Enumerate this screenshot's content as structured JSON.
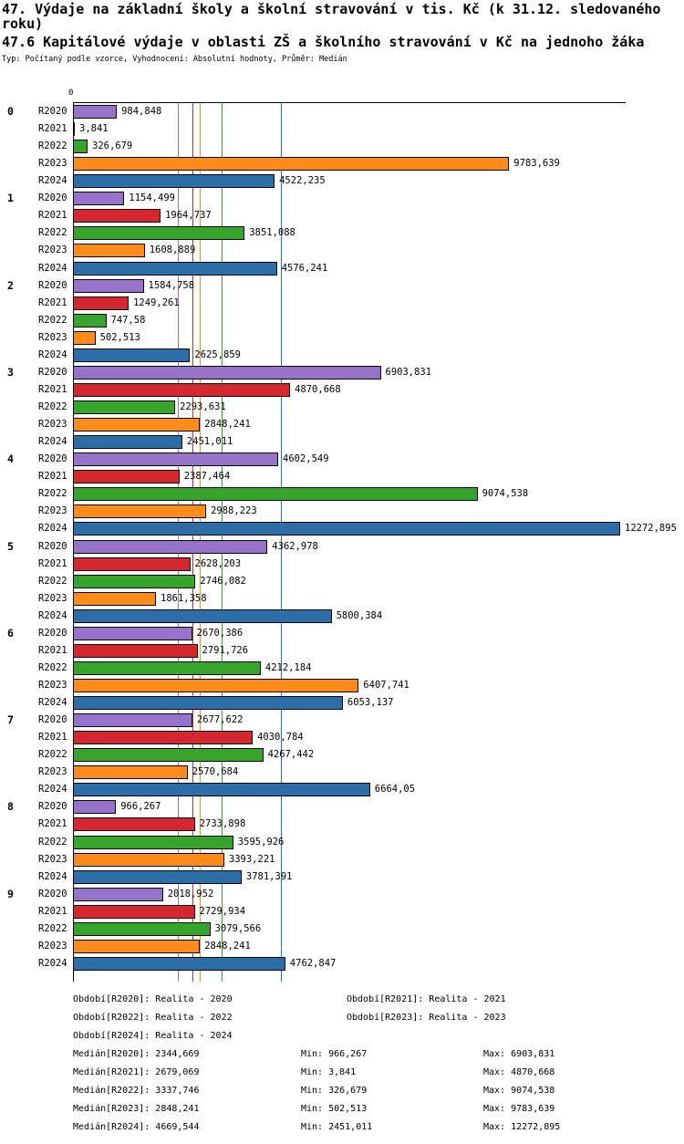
{
  "header": {
    "title": "47. Výdaje na základní školy a školní stravování v tis. Kč (k 31.12. sledovaného roku)",
    "subtitle": "47.6 Kapitálové výdaje v oblasti ZŠ a školního stravování v Kč na jednoho žáka",
    "meta": "Typ: Počítaný podle vzorce, Vyhodnocení: Absolutní hodnoty, Průměr: Medián"
  },
  "chart_data": {
    "type": "bar",
    "orientation": "horizontal",
    "x_axis": {
      "origin_label": "0",
      "max_value": 12272.895
    },
    "series": [
      "R2020",
      "R2021",
      "R2022",
      "R2023",
      "R2024"
    ],
    "series_colors": [
      "#9673C8",
      "#D4282E",
      "#37A42C",
      "#FF8C1A",
      "#2C6FA8"
    ],
    "medians": [
      2344.669,
      2679.069,
      3337.746,
      2848.241,
      4669.544
    ],
    "groups": [
      {
        "label": "0",
        "values": [
          "984,848",
          "3,841",
          "326,679",
          "9783,639",
          "4522,235"
        ]
      },
      {
        "label": "1",
        "values": [
          "1154,499",
          "1964,737",
          "3851,088",
          "1608,889",
          "4576,241"
        ]
      },
      {
        "label": "2",
        "values": [
          "1584,758",
          "1249,261",
          "747,58",
          "502,513",
          "2625,859"
        ]
      },
      {
        "label": "3",
        "values": [
          "6903,831",
          "4870,668",
          "2293,631",
          "2848,241",
          "2451,011"
        ]
      },
      {
        "label": "4",
        "values": [
          "4602,549",
          "2387,464",
          "9074,538",
          "2988,223",
          "12272,895"
        ]
      },
      {
        "label": "5",
        "values": [
          "4362,978",
          "2628,203",
          "2746,082",
          "1861,358",
          "5800,384"
        ]
      },
      {
        "label": "6",
        "values": [
          "2670,386",
          "2791,726",
          "4212,184",
          "6407,741",
          "6053,137"
        ]
      },
      {
        "label": "7",
        "values": [
          "2677,622",
          "4030,784",
          "4267,442",
          "2570,684",
          "6664,05"
        ]
      },
      {
        "label": "8",
        "values": [
          "966,267",
          "2733,898",
          "3595,926",
          "3393,221",
          "3781,391"
        ]
      },
      {
        "label": "9",
        "values": [
          "2018,952",
          "2729,934",
          "3079,566",
          "2848,241",
          "4762,847"
        ]
      }
    ]
  },
  "legend": [
    "Období[R2020]: Realita - 2020",
    "Období[R2021]: Realita - 2021",
    "Období[R2022]: Realita - 2022",
    "Období[R2023]: Realita - 2023",
    "Období[R2024]: Realita - 2024"
  ],
  "stats": [
    {
      "median": "Medián[R2020]: 2344,669",
      "min": "Min: 966,267",
      "max": "Max: 6903,831"
    },
    {
      "median": "Medián[R2021]: 2679,069",
      "min": "Min: 3,841",
      "max": "Max: 4870,668"
    },
    {
      "median": "Medián[R2022]: 3337,746",
      "min": "Min: 326,679",
      "max": "Max: 9074,538"
    },
    {
      "median": "Medián[R2023]: 2848,241",
      "min": "Min: 502,513",
      "max": "Max: 9783,639"
    },
    {
      "median": "Medián[R2024]: 4669,544",
      "min": "Min: 2451,011",
      "max": "Max: 12272,895"
    }
  ]
}
